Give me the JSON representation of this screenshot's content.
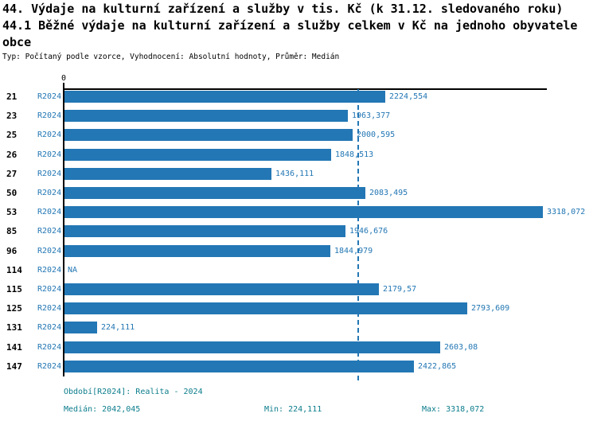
{
  "header": {
    "line1": "44. Výdaje na kulturní zařízení a služby v tis. Kč (k 31.12. sledovaného roku)",
    "line2": "44.1 Běžné výdaje na kulturní zařízení a služby celkem v Kč na jednoho obyvatele obce",
    "meta": "Typ: Počítaný podle vzorce, Vyhodnocení: Absolutní hodnoty, Průměr: Medián"
  },
  "colors": {
    "bar_blue": "#2377b4",
    "footer_teal": "#0c7d8c",
    "axis_black": "#000000",
    "background": "#ffffff"
  },
  "chart_data": {
    "type": "bar",
    "orientation": "horizontal",
    "title": "44.1 Běžné výdaje na kulturní zařízení a služby celkem v Kč na jednoho obyvatele obce",
    "x_axis": {
      "zero_label": "0",
      "xlim": [
        0,
        3350
      ],
      "gridlines": false
    },
    "series_label": "R2024",
    "period_note": "Období[R2024]: Realita - 2024",
    "median": 2042.045,
    "min": 224.111,
    "max": 3318.072,
    "categories": [
      "21",
      "23",
      "25",
      "26",
      "27",
      "50",
      "53",
      "85",
      "96",
      "114",
      "115",
      "125",
      "131",
      "141",
      "147"
    ],
    "values": [
      2224.554,
      1963.377,
      2000.595,
      1848.513,
      1436.111,
      2083.495,
      3318.072,
      1946.676,
      1844.979,
      null,
      2179.57,
      2793.609,
      224.111,
      2603.08,
      2422.865
    ],
    "value_labels": [
      "2224,554",
      "1963,377",
      "2000,595",
      "1848,513",
      "1436,111",
      "2083,495",
      "3318,072",
      "1946,676",
      "1844,979",
      "NA",
      "2179,57",
      "2793,609",
      "224,111",
      "2603,08",
      "2422,865"
    ],
    "median_line": {
      "style": "dashed",
      "color": "#2377b4"
    }
  },
  "footer": {
    "period": "Období[R2024]: Realita - 2024",
    "median": "Medián: 2042,045",
    "min": "Min: 224,111",
    "max": "Max: 3318,072"
  }
}
